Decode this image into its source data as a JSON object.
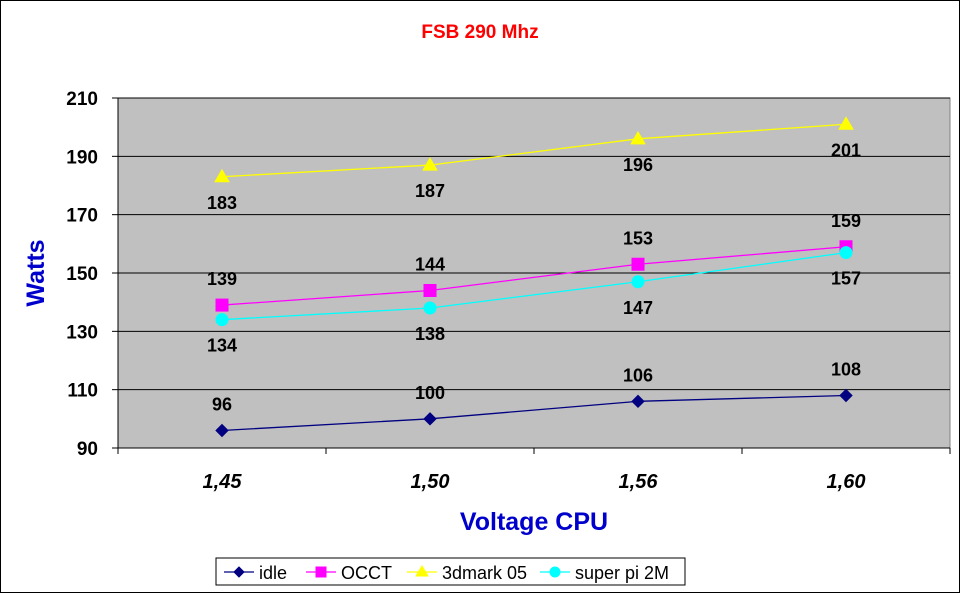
{
  "chart_data": {
    "type": "line",
    "title": "FSB 290 Mhz",
    "xlabel": "Voltage CPU",
    "ylabel": "Watts",
    "categories": [
      "1,45",
      "1,50",
      "1,56",
      "1,60"
    ],
    "ylim": [
      90,
      210
    ],
    "yticks": [
      90,
      110,
      130,
      150,
      170,
      190,
      210
    ],
    "grid": true,
    "legend_position": "bottom",
    "series": [
      {
        "name": "idle",
        "values": [
          96,
          100,
          106,
          108
        ],
        "color": "#000080",
        "marker": "diamond",
        "label_position": "above"
      },
      {
        "name": "OCCT",
        "values": [
          139,
          144,
          153,
          159
        ],
        "color": "#FF00FF",
        "marker": "square",
        "label_position": "above"
      },
      {
        "name": "3dmark 05",
        "values": [
          183,
          187,
          196,
          201
        ],
        "color": "#FFFF00",
        "marker": "triangle",
        "label_position": "below"
      },
      {
        "name": "super pi 2M",
        "values": [
          134,
          138,
          147,
          157
        ],
        "color": "#00FFFF",
        "marker": "circle",
        "label_position": "below"
      }
    ],
    "colors": {
      "title": "#FF0000",
      "axis_title": "#0000CC",
      "plot_background": "#C0C0C0"
    }
  }
}
